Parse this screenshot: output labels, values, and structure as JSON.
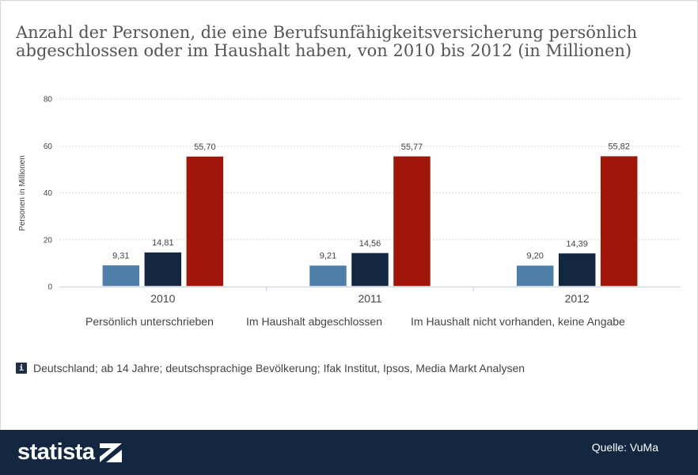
{
  "title": {
    "line1": "Anzahl der Personen, die eine Berufsunfähigkeitsversicherung persönlich",
    "line2": "abgeschlossen oder im Haushalt haben, von 2010 bis 2012 (in Millionen)"
  },
  "chart_data": {
    "type": "bar",
    "title": "Anzahl der Personen, die eine Berufsunfähigkeitsversicherung persönlich abgeschlossen oder im Haushalt haben, von 2010 bis 2012 (in Millionen)",
    "categories": [
      "2010",
      "2011",
      "2012"
    ],
    "ylabel": "Personen in Millionen",
    "ylim": [
      0,
      80
    ],
    "yticks": [
      "0",
      "20",
      "40",
      "60",
      "80"
    ],
    "grid": true,
    "legend_position": "bottom",
    "series": [
      {
        "name": "Persönlich unterschrieben",
        "color": "#4f7ea8",
        "values": [
          9.31,
          9.21,
          9.2
        ],
        "labels": [
          "9,31",
          "9,21",
          "9,20"
        ]
      },
      {
        "name": "Im Haushalt abgeschlossen",
        "color": "#132840",
        "values": [
          14.81,
          14.56,
          14.39
        ],
        "labels": [
          "14,81",
          "14,56",
          "14,39"
        ]
      },
      {
        "name": "Im Haushalt nicht vorhanden, keine Angabe",
        "color": "#a0170a",
        "values": [
          55.7,
          55.77,
          55.82
        ],
        "labels": [
          "55,70",
          "55,77",
          "55,82"
        ]
      }
    ]
  },
  "source_note": "Deutschland; ab 14 Jahre; deutschsprachige Bevölkerung; Ifak Institut, Ipsos, Media Markt Analysen",
  "info_icon_glyph": "i",
  "footer": {
    "logo_text": "statista",
    "quelle": "Quelle: VuMa"
  },
  "icons": {
    "info": "info-icon",
    "logo": "statista-logo-icon"
  }
}
